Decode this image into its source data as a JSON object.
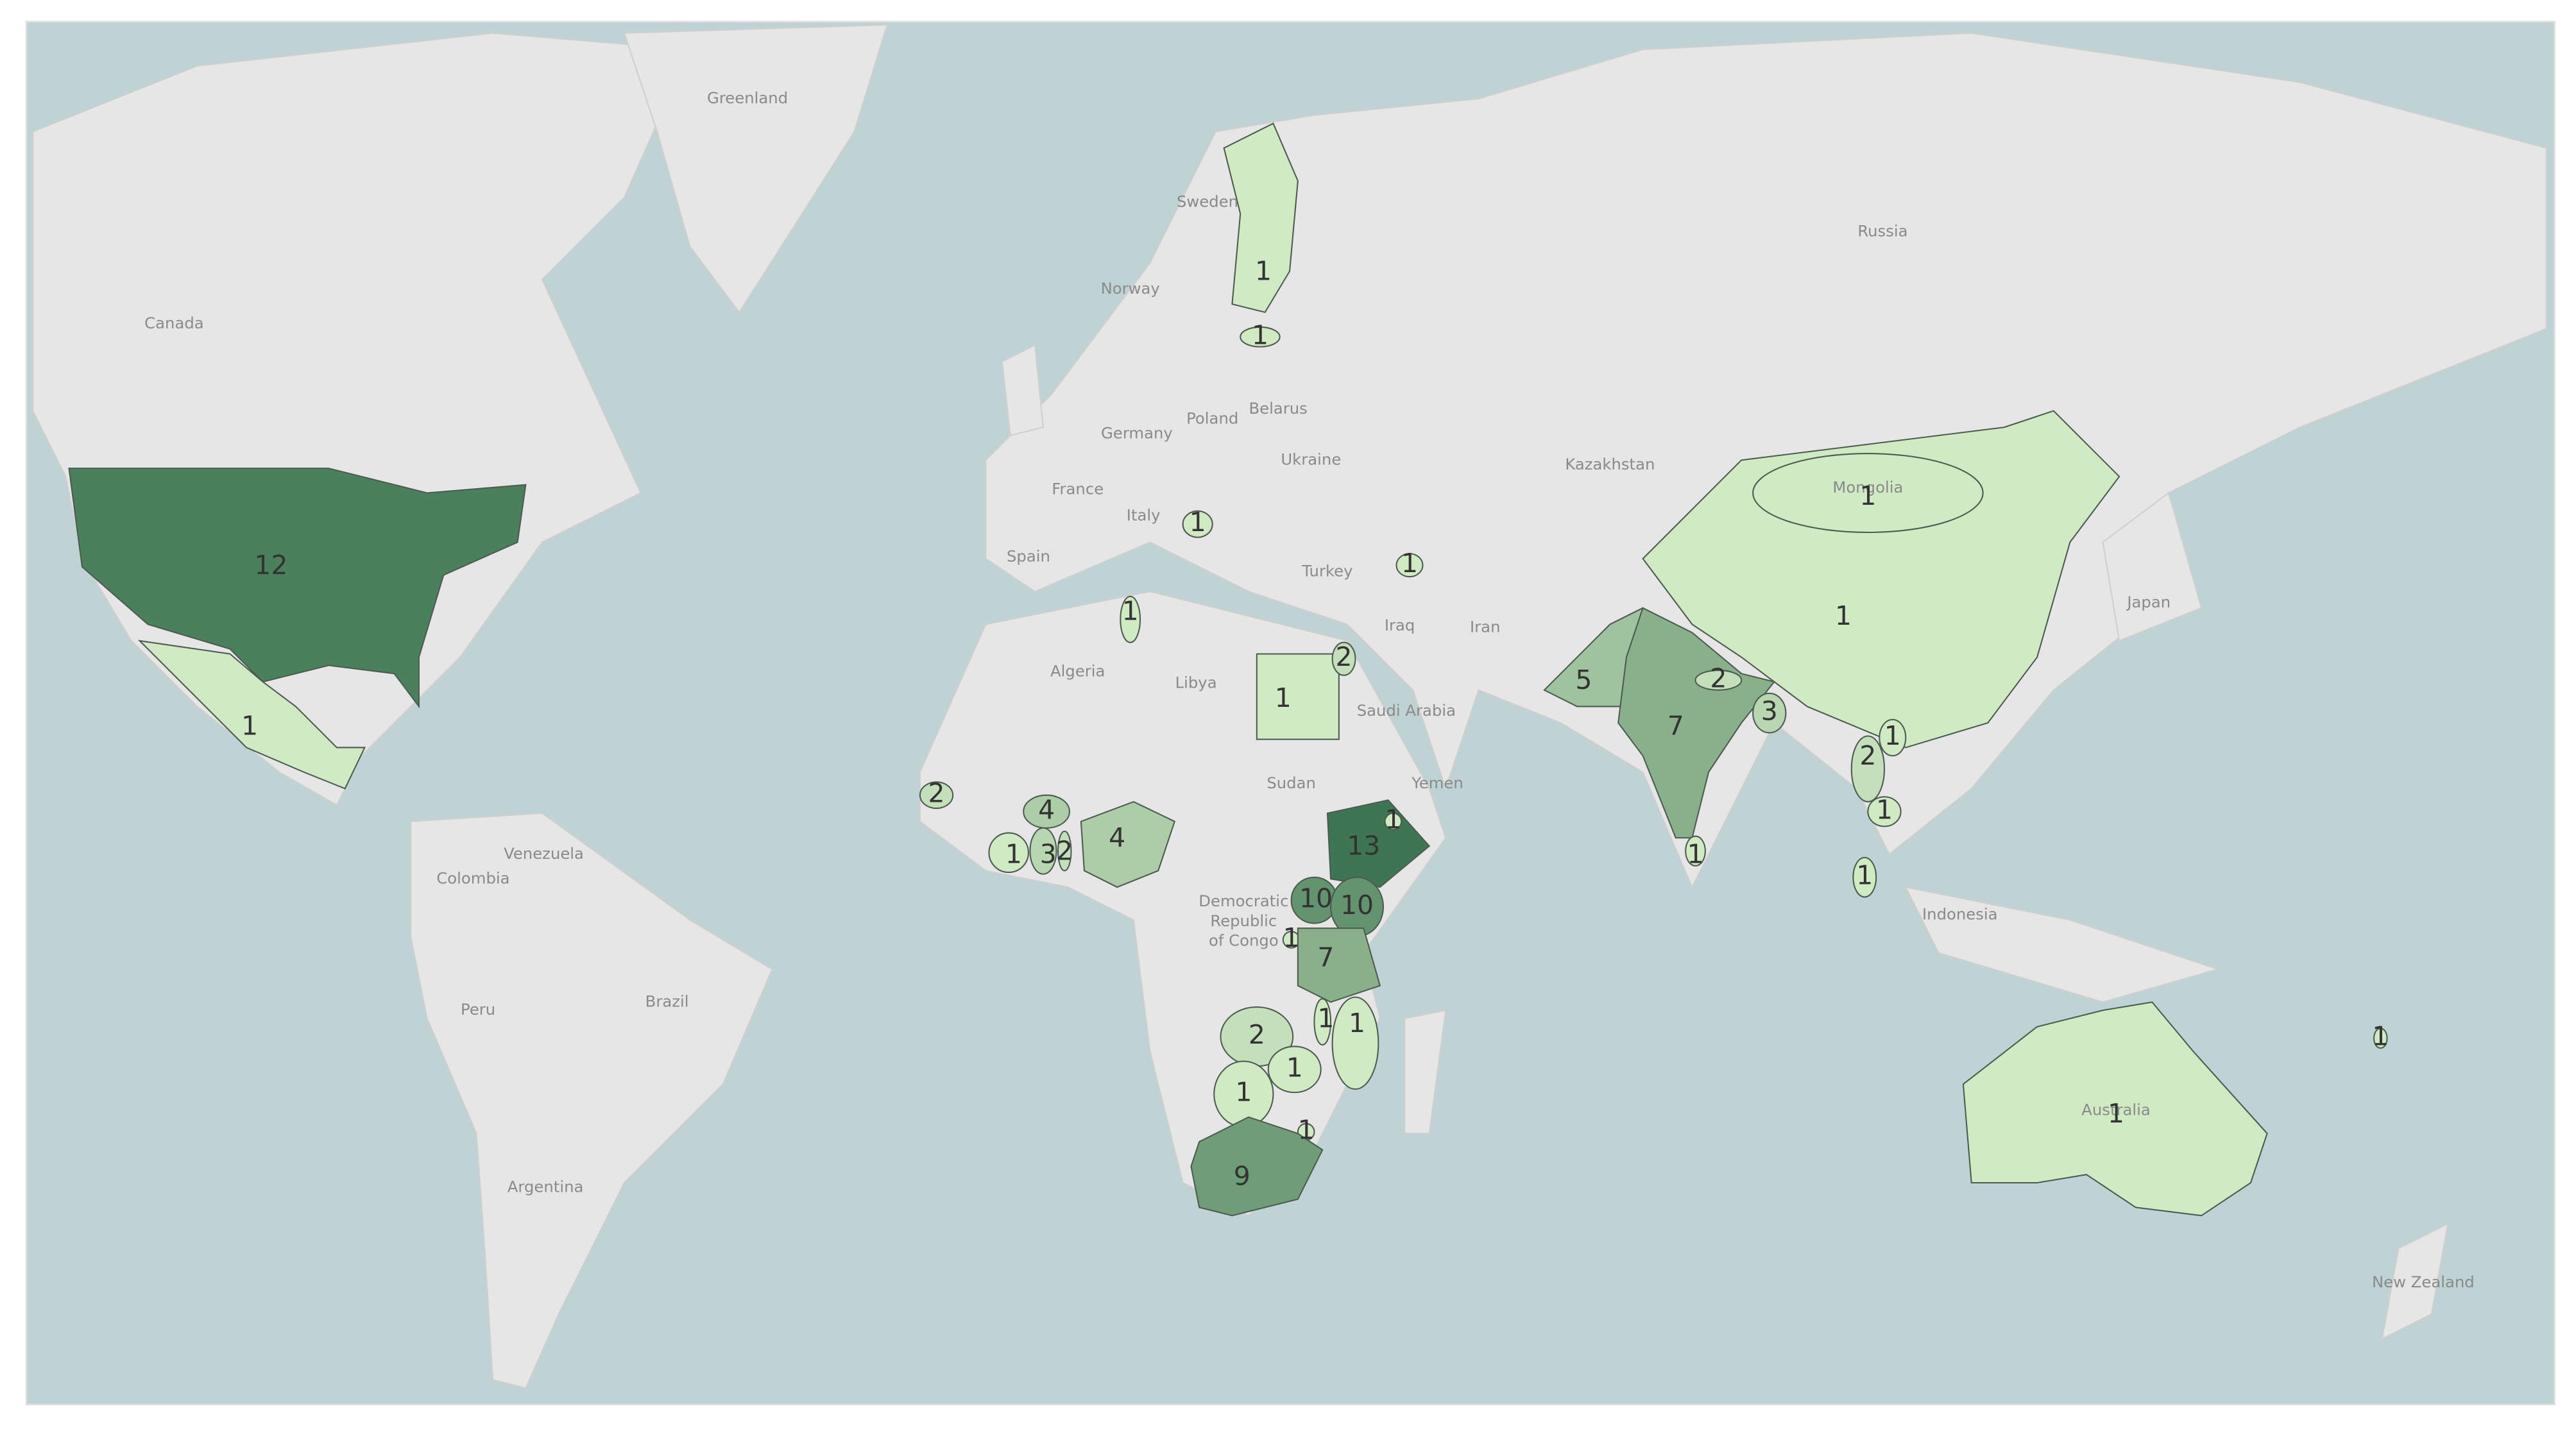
{
  "map": {
    "place_labels": [
      "Greenland",
      "Sweden",
      "Norway",
      "Canada",
      "Russia",
      "Belarus",
      "Poland",
      "Germany",
      "Ukraine",
      "Kazakhstan",
      "France",
      "Italy",
      "Spain",
      "Turkey",
      "Iraq",
      "Iran",
      "Japan",
      "Algeria",
      "Libya",
      "Saudi Arabia",
      "Sudan",
      "Yemen",
      "Venezuela",
      "Colombia",
      "Democratic",
      "Republic",
      "of Congo",
      "Indonesia",
      "Peru",
      "Brazil",
      "Argentina",
      "New Zealand",
      "Mongolia",
      "Australia"
    ],
    "values": [
      12,
      1,
      1,
      1,
      1,
      1,
      1,
      1,
      2,
      5,
      7,
      2,
      3,
      1,
      1,
      1,
      2,
      1,
      1,
      1,
      2,
      4,
      1,
      3,
      2,
      4,
      13,
      1,
      10,
      10,
      1,
      7,
      1,
      1,
      2,
      1,
      1,
      1,
      9,
      1,
      1
    ],
    "color_scale": [
      "#d0eac3",
      "#3e7653"
    ]
  }
}
